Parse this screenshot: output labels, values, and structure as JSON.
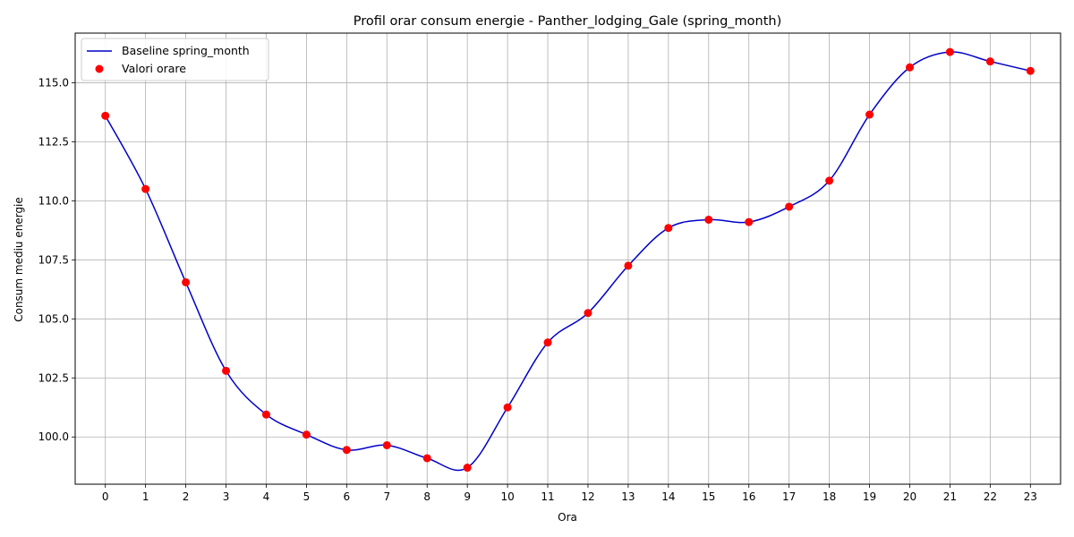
{
  "chart_data": {
    "type": "line",
    "title": "Profil orar consum energie - Panther_lodging_Gale (spring_month)",
    "xlabel": "Ora",
    "ylabel": "Consum mediu energie",
    "x": [
      0,
      1,
      2,
      3,
      4,
      5,
      6,
      7,
      8,
      9,
      10,
      11,
      12,
      13,
      14,
      15,
      16,
      17,
      18,
      19,
      20,
      21,
      22,
      23
    ],
    "xlim": [
      -0.75,
      23.75
    ],
    "ylim": [
      98.0,
      117.1
    ],
    "yticks": [
      100.0,
      102.5,
      105.0,
      107.5,
      110.0,
      112.5,
      115.0
    ],
    "ytick_labels": [
      "100.0",
      "102.5",
      "105.0",
      "107.5",
      "110.0",
      "112.5",
      "115.0"
    ],
    "xtick_labels": [
      "0",
      "1",
      "2",
      "3",
      "4",
      "5",
      "6",
      "7",
      "8",
      "9",
      "10",
      "11",
      "12",
      "13",
      "14",
      "15",
      "16",
      "17",
      "18",
      "19",
      "20",
      "21",
      "22",
      "23"
    ],
    "grid": true,
    "legend_position": "top-left",
    "series": [
      {
        "name": "Baseline spring_month",
        "kind": "line",
        "color": "#0000cc",
        "values": [
          113.6,
          110.5,
          106.55,
          102.8,
          100.95,
          100.1,
          99.45,
          99.65,
          99.1,
          98.7,
          101.25,
          104.0,
          105.25,
          107.25,
          108.85,
          109.2,
          109.1,
          109.75,
          110.85,
          113.65,
          115.65,
          116.3,
          115.9,
          115.5
        ]
      },
      {
        "name": "Valori orare",
        "kind": "scatter",
        "color": "#ff0000",
        "values": [
          113.6,
          110.5,
          106.55,
          102.8,
          100.95,
          100.1,
          99.45,
          99.65,
          99.1,
          98.7,
          101.25,
          104.0,
          105.25,
          107.25,
          108.85,
          109.2,
          109.1,
          109.75,
          110.85,
          113.65,
          115.65,
          116.3,
          115.9,
          115.5
        ]
      }
    ]
  }
}
